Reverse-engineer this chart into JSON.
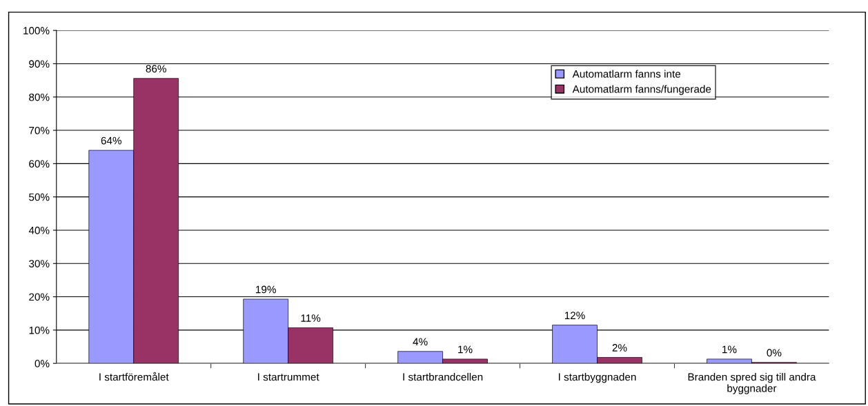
{
  "chart_data": {
    "type": "bar",
    "categories": [
      "I startföremålet",
      "I startrummet",
      "I startbrandcellen",
      "I startbyggnaden",
      "Branden spred sig till andra byggnader"
    ],
    "series": [
      {
        "name": "Automatlarm fanns inte",
        "color": "#9999ff",
        "values": [
          64,
          19.3,
          3.6,
          11.5,
          1.3
        ],
        "value_labels": [
          "64%",
          "19%",
          "4%",
          "12%",
          "1%"
        ]
      },
      {
        "name": "Automatlarm fanns/fungerade",
        "color": "#993366",
        "values": [
          85.6,
          10.7,
          1.3,
          1.8,
          0.3
        ],
        "value_labels": [
          "86%",
          "11%",
          "1%",
          "2%",
          "0%"
        ]
      }
    ],
    "ylim": [
      0,
      100
    ],
    "yticks": [
      {
        "value": 0,
        "label": "0%"
      },
      {
        "value": 10,
        "label": "10%"
      },
      {
        "value": 20,
        "label": "20%"
      },
      {
        "value": 30,
        "label": "30%"
      },
      {
        "value": 40,
        "label": "40%"
      },
      {
        "value": 50,
        "label": "50%"
      },
      {
        "value": 60,
        "label": "60%"
      },
      {
        "value": 70,
        "label": "70%"
      },
      {
        "value": 80,
        "label": "80%"
      },
      {
        "value": 90,
        "label": "90%"
      },
      {
        "value": 100,
        "label": "100%"
      }
    ],
    "grid": "y",
    "legend": "top right"
  }
}
